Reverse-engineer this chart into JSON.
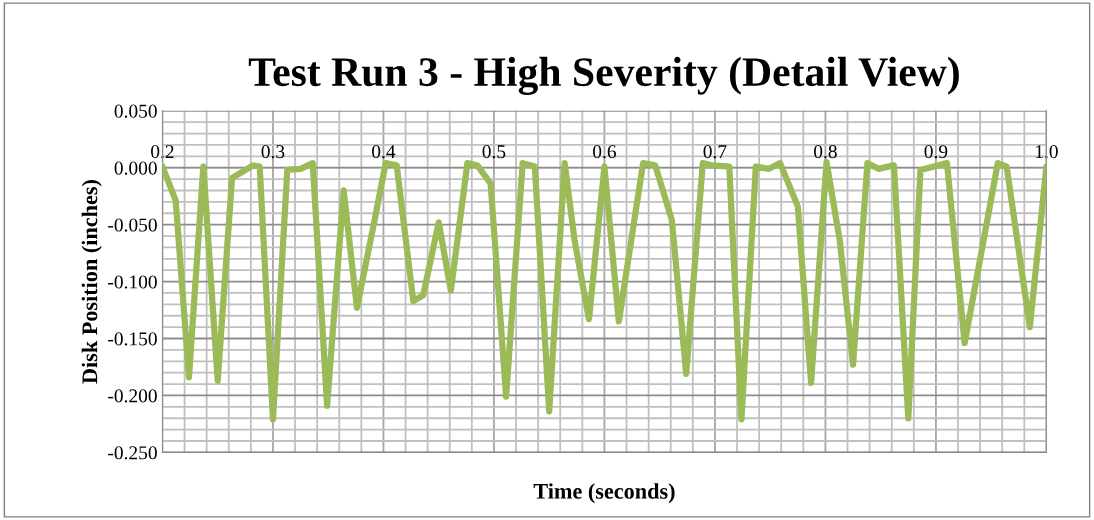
{
  "chart_data": {
    "type": "line",
    "title": "Test Run 3 - High Severity (Detail View)",
    "xlabel": "Time (seconds)",
    "ylabel": "Disk Position (inches)",
    "x": [
      0.2,
      0.212,
      0.224,
      0.237,
      0.25,
      0.263,
      0.282,
      0.288,
      0.3,
      0.313,
      0.325,
      0.336,
      0.349,
      0.364,
      0.376,
      0.392,
      0.402,
      0.412,
      0.427,
      0.436,
      0.45,
      0.461,
      0.476,
      0.485,
      0.497,
      0.511,
      0.526,
      0.537,
      0.55,
      0.564,
      0.573,
      0.586,
      0.6,
      0.613,
      0.635,
      0.646,
      0.661,
      0.674,
      0.689,
      0.698,
      0.713,
      0.724,
      0.737,
      0.749,
      0.759,
      0.775,
      0.787,
      0.801,
      0.813,
      0.825,
      0.838,
      0.848,
      0.862,
      0.875,
      0.886,
      0.91,
      0.926,
      0.956,
      0.964,
      0.985,
      1.0
    ],
    "series": [
      {
        "color": "#9bbb59",
        "values": [
          0.001,
          -0.029,
          -0.184,
          0.001,
          -0.187,
          -0.009,
          0.002,
          0.001,
          -0.221,
          -0.002,
          -0.001,
          0.004,
          -0.209,
          -0.02,
          -0.123,
          -0.046,
          0.004,
          0.002,
          -0.117,
          -0.112,
          -0.048,
          -0.108,
          0.004,
          0.002,
          -0.014,
          -0.201,
          0.004,
          0.001,
          -0.214,
          0.004,
          -0.064,
          -0.133,
          0.001,
          -0.135,
          0.004,
          0.002,
          -0.046,
          -0.181,
          0.004,
          0.002,
          0.001,
          -0.221,
          0.001,
          -0.001,
          0.004,
          -0.034,
          -0.189,
          0.005,
          -0.064,
          -0.173,
          0.004,
          -0.001,
          0.002,
          -0.22,
          -0.002,
          0.004,
          -0.154,
          0.004,
          0.001,
          -0.14,
          0.001
        ]
      }
    ],
    "xlim": [
      0.2,
      1.0
    ],
    "ylim": [
      -0.25,
      0.05
    ],
    "xticks": [
      0.2,
      {
        "value": 0.22,
        "label": null
      },
      {
        "value": 0.24,
        "label": null
      },
      {
        "value": 0.26,
        "label": null
      },
      {
        "value": 0.28,
        "label": null
      },
      0.3,
      {
        "value": 0.32,
        "label": null
      },
      {
        "value": 0.34,
        "label": null
      },
      {
        "value": 0.36,
        "label": null
      },
      {
        "value": 0.38,
        "label": null
      },
      0.4,
      {
        "value": 0.42,
        "label": null
      },
      {
        "value": 0.44,
        "label": null
      },
      {
        "value": 0.46,
        "label": null
      },
      {
        "value": 0.48,
        "label": null
      },
      0.5,
      {
        "value": 0.52,
        "label": null
      },
      {
        "value": 0.54,
        "label": null
      },
      {
        "value": 0.56,
        "label": null
      },
      {
        "value": 0.58,
        "label": null
      },
      0.6,
      {
        "value": 0.62,
        "label": null
      },
      {
        "value": 0.64,
        "label": null
      },
      {
        "value": 0.66,
        "label": null
      },
      {
        "value": 0.68,
        "label": null
      },
      0.7,
      {
        "value": 0.72,
        "label": null
      },
      {
        "value": 0.74,
        "label": null
      },
      {
        "value": 0.76,
        "label": null
      },
      {
        "value": 0.78,
        "label": null
      },
      0.8,
      {
        "value": 0.82,
        "label": null
      },
      {
        "value": 0.84,
        "label": null
      },
      {
        "value": 0.86,
        "label": null
      },
      {
        "value": 0.88,
        "label": null
      },
      0.9,
      {
        "value": 0.92,
        "label": null
      },
      {
        "value": 0.94,
        "label": null
      },
      {
        "value": 0.96,
        "label": null
      },
      {
        "value": 0.98,
        "label": null
      },
      {
        "value": 1.0,
        "label": "1.0"
      }
    ],
    "yticks": [
      {
        "value": -0.25,
        "label": "-0.250"
      },
      {
        "value": -0.24,
        "label": null
      },
      {
        "value": -0.23,
        "label": null
      },
      {
        "value": -0.22,
        "label": null
      },
      {
        "value": -0.21,
        "label": null
      },
      {
        "value": -0.2,
        "label": "-0.200"
      },
      {
        "value": -0.19,
        "label": null
      },
      {
        "value": -0.18,
        "label": null
      },
      {
        "value": -0.17,
        "label": null
      },
      {
        "value": -0.16,
        "label": null
      },
      {
        "value": -0.15,
        "label": "-0.150"
      },
      {
        "value": -0.14,
        "label": null
      },
      {
        "value": -0.13,
        "label": null
      },
      {
        "value": -0.12,
        "label": null
      },
      {
        "value": -0.11,
        "label": null
      },
      {
        "value": -0.1,
        "label": "-0.100"
      },
      {
        "value": -0.09,
        "label": null
      },
      {
        "value": -0.08,
        "label": null
      },
      {
        "value": -0.07,
        "label": null
      },
      {
        "value": -0.06,
        "label": null
      },
      {
        "value": -0.05,
        "label": "-0.050"
      },
      {
        "value": -0.04,
        "label": null
      },
      {
        "value": -0.03,
        "label": null
      },
      {
        "value": -0.02,
        "label": null
      },
      {
        "value": -0.01,
        "label": null
      },
      {
        "value": 0,
        "label": "0.000"
      },
      {
        "value": 0.01,
        "label": null
      },
      {
        "value": 0.02,
        "label": null
      },
      {
        "value": 0.03,
        "label": null
      },
      {
        "value": 0.04,
        "label": null
      },
      {
        "value": 0.05,
        "label": "0.050"
      }
    ],
    "grid": true,
    "marker": "none",
    "line_style": "solid"
  }
}
